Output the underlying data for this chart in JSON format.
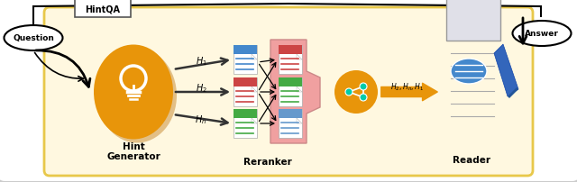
{
  "bg_color": "#ffffff",
  "outer_box_color": "#cccccc",
  "inner_box_color": "#fff8e0",
  "inner_box_border": "#e8c84a",
  "hint_qa_label": "HintQA",
  "question_label": "Question",
  "answer_label": "Answer",
  "hint_gen_label_1": "Hint",
  "hint_gen_label_2": "Generator",
  "reranker_label": "Reranker",
  "reader_label": "Reader",
  "h1_label": "$H_1$",
  "h2_label": "$H_2$",
  "hn_label": "$H_n$",
  "h2_hn_h1_label": "$H_2,H_n,H_1$",
  "arrow_color": "#111111",
  "orange_color": "#e8950a",
  "orange_dark": "#c87800",
  "doc_blue": "#4488cc",
  "doc_red": "#cc4444",
  "doc_green": "#44aa44",
  "doc_light_blue": "#6699cc",
  "doc_page": "#dddddd",
  "reranker_bracket_color": "#f0a0a0",
  "figsize": [
    6.4,
    2.03
  ],
  "dpi": 100
}
